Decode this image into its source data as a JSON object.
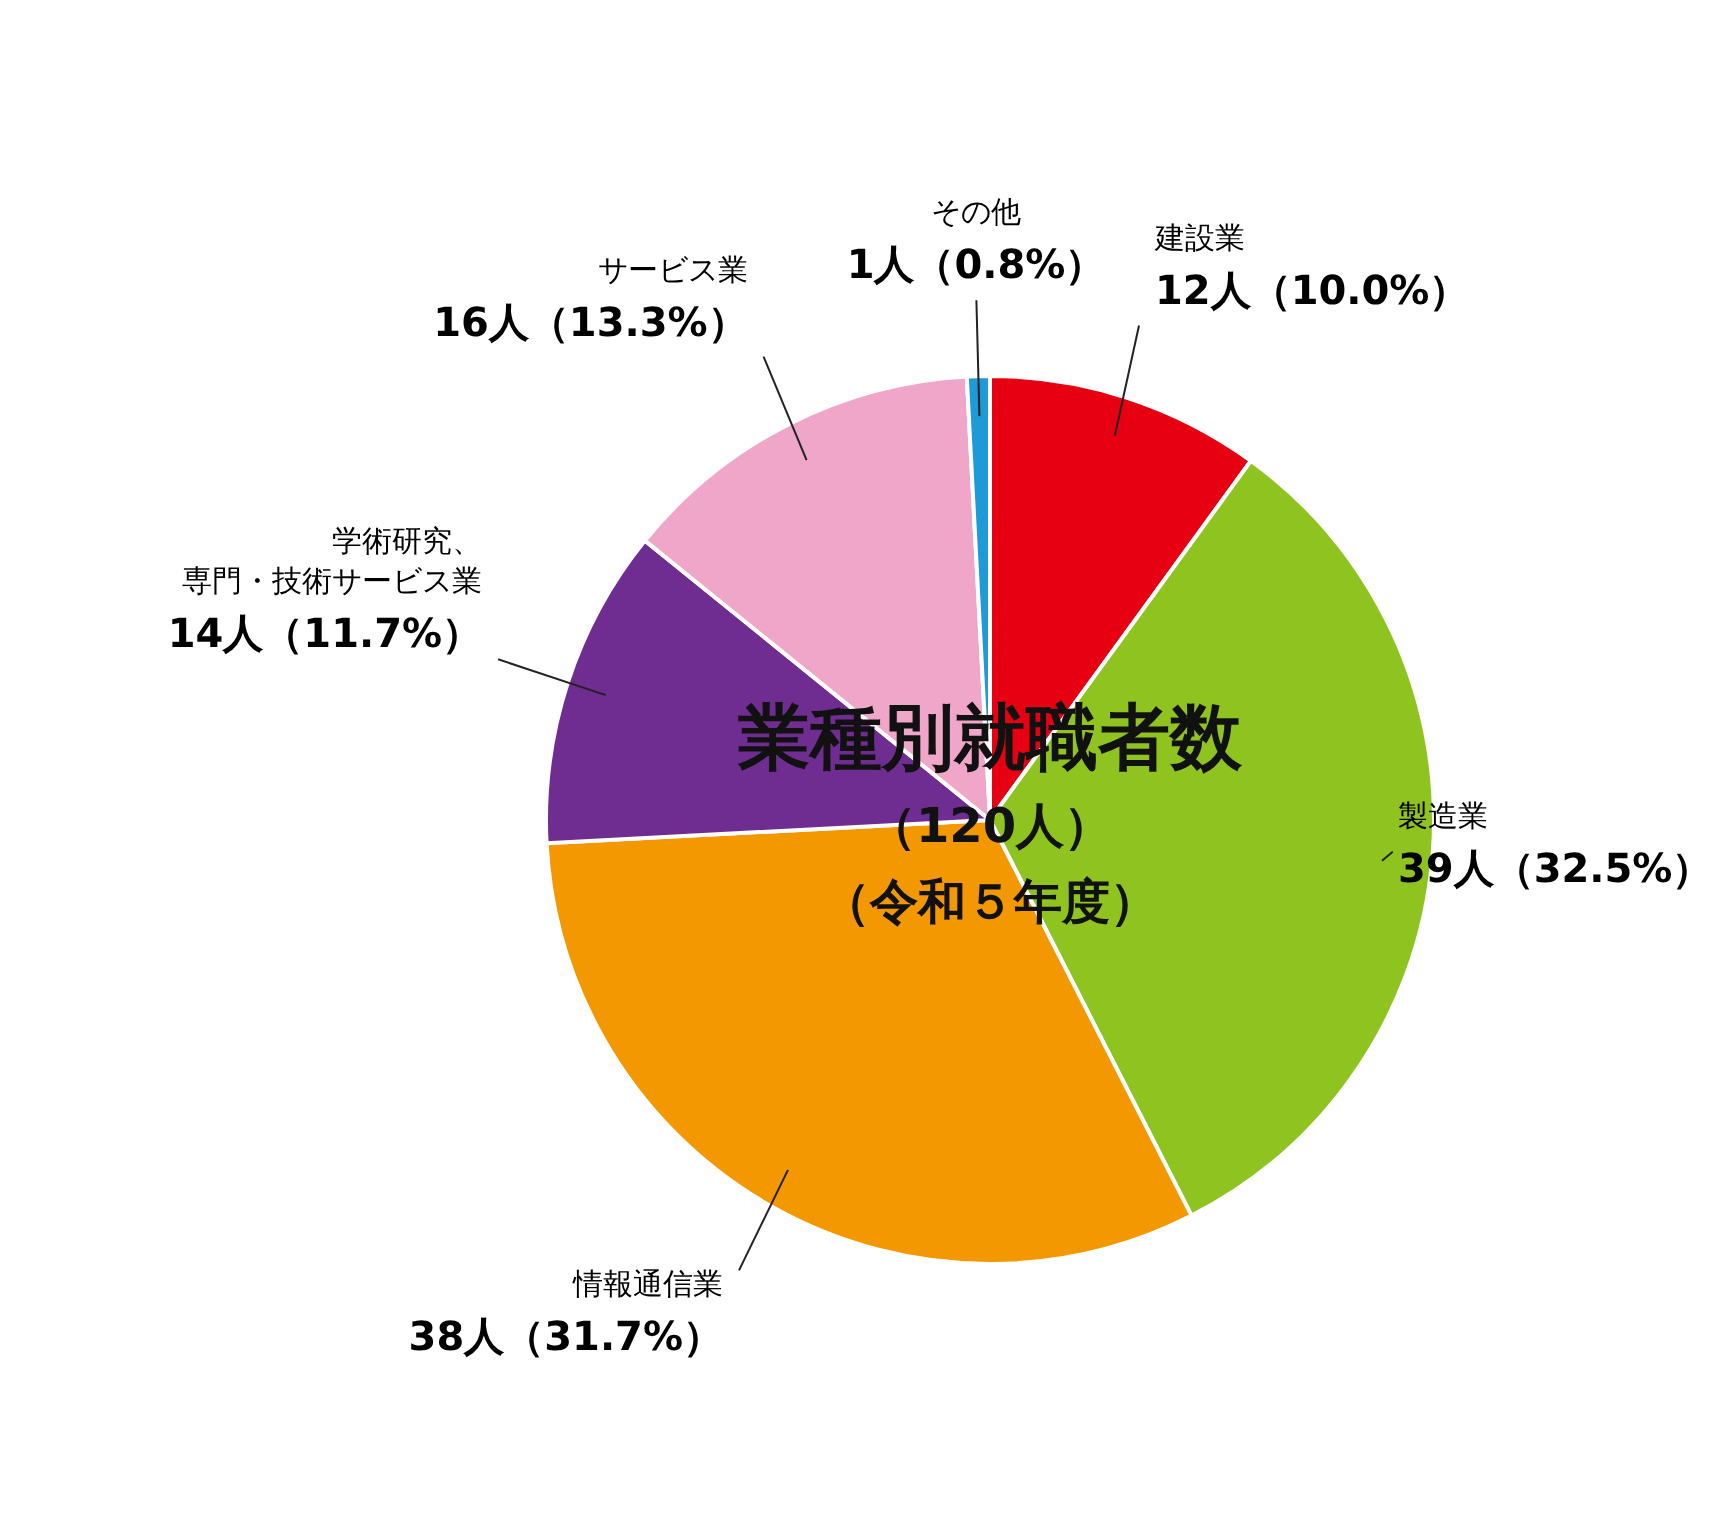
{
  "chart_data": {
    "type": "pie",
    "title": "業種別就職者数",
    "subtitle": "（120人）",
    "annotations": [
      "（令和５年度）"
    ],
    "categories": [
      "建設業",
      "製造業",
      "情報通信業",
      "学術研究、専門・技術サービス業",
      "サービス業",
      "その他"
    ],
    "values": [
      12,
      39,
      38,
      14,
      16,
      1
    ],
    "value_labels": [
      "12人（10.0%）",
      "39人（32.5%）",
      "38人（31.7%）",
      "14人（11.7%）",
      "16人（13.3%）",
      "1人（0.8%）"
    ],
    "colors": [
      "#e60012",
      "#8fc31f",
      "#f39800",
      "#6f2c91",
      "#f0a6c8",
      "#1e9bd7"
    ]
  }
}
